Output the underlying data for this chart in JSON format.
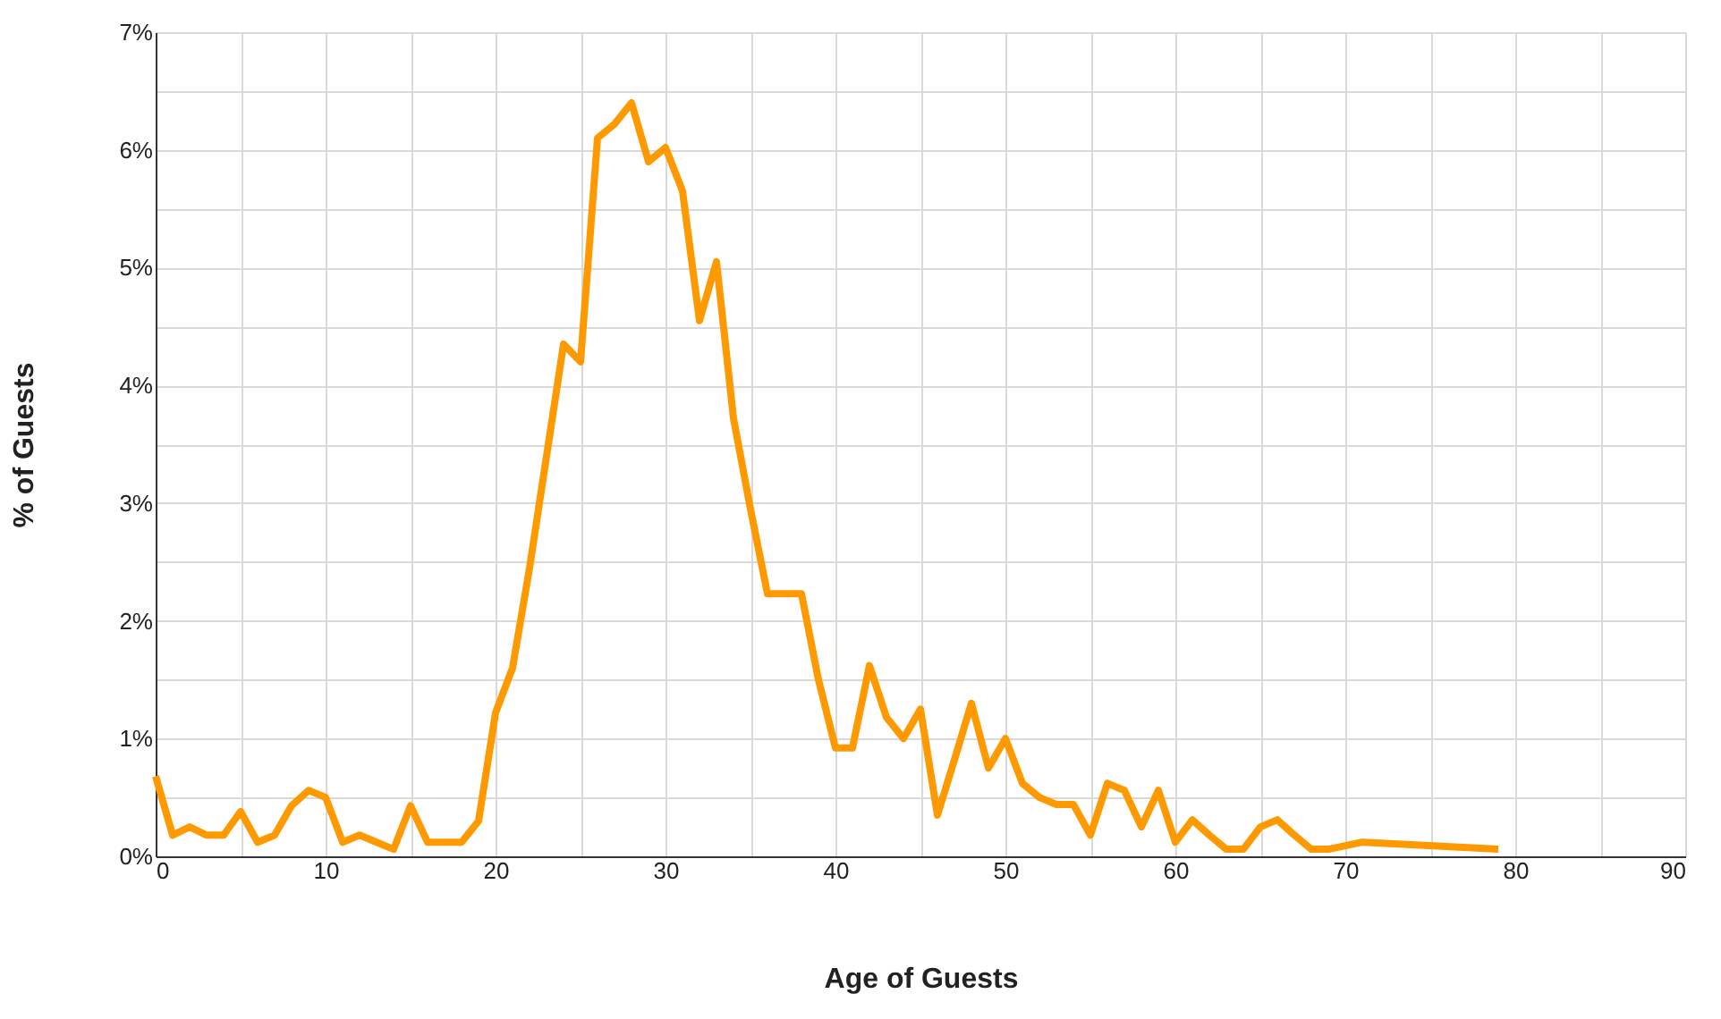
{
  "chart_data": {
    "type": "line",
    "xlabel": "Age of Guests",
    "ylabel": "% of Guests",
    "x": [
      0,
      1,
      2,
      3,
      4,
      5,
      6,
      7,
      8,
      9,
      10,
      11,
      12,
      13,
      14,
      15,
      16,
      17,
      18,
      19,
      20,
      21,
      22,
      23,
      24,
      25,
      26,
      27,
      28,
      29,
      30,
      31,
      32,
      33,
      34,
      35,
      36,
      37,
      38,
      39,
      40,
      41,
      42,
      43,
      44,
      45,
      46,
      47,
      48,
      49,
      50,
      51,
      52,
      53,
      54,
      55,
      56,
      57,
      58,
      59,
      60,
      61,
      62,
      63,
      64,
      65,
      66,
      67,
      68,
      69,
      70,
      71,
      79
    ],
    "series": [
      {
        "color": "#ff9900",
        "values": [
          0.68,
          0.18,
          0.25,
          0.18,
          0.18,
          0.38,
          0.12,
          0.18,
          0.43,
          0.56,
          0.5,
          0.12,
          0.18,
          0.12,
          0.06,
          0.43,
          0.12,
          0.12,
          0.12,
          0.3,
          1.22,
          1.6,
          2.45,
          3.4,
          4.35,
          4.2,
          6.1,
          6.22,
          6.4,
          5.9,
          6.02,
          5.65,
          4.55,
          5.05,
          3.72,
          2.95,
          2.23,
          2.23,
          2.23,
          1.5,
          0.92,
          0.92,
          1.62,
          1.18,
          1.0,
          1.25,
          0.35,
          0.82,
          1.3,
          0.75,
          1.0,
          0.62,
          0.5,
          0.44,
          0.44,
          0.18,
          0.62,
          0.56,
          0.25,
          0.56,
          0.12,
          0.31,
          0.18,
          0.06,
          0.06,
          0.25,
          0.31,
          0.18,
          0.06,
          0.06,
          0.09,
          0.12,
          0.06
        ]
      }
    ],
    "xlim": [
      0,
      90
    ],
    "xticks": [
      0,
      {
        "value": 5,
        "label": null
      },
      10,
      {
        "value": 15,
        "label": null
      },
      20,
      {
        "value": 25,
        "label": null
      },
      30,
      {
        "value": 35,
        "label": null
      },
      40,
      {
        "value": 45,
        "label": null
      },
      50,
      {
        "value": 55,
        "label": null
      },
      60,
      {
        "value": 65,
        "label": null
      },
      70,
      {
        "value": 75,
        "label": null
      },
      80,
      {
        "value": 85,
        "label": null
      },
      90
    ],
    "ylim": [
      0,
      7
    ],
    "yticks": [
      {
        "value": 0,
        "label": "0%"
      },
      {
        "value": 0.5,
        "label": null
      },
      {
        "value": 1,
        "label": "1%"
      },
      {
        "value": 1.5,
        "label": null
      },
      {
        "value": 2,
        "label": "2%"
      },
      {
        "value": 2.5,
        "label": null
      },
      {
        "value": 3,
        "label": "3%"
      },
      {
        "value": 3.5,
        "label": null
      },
      {
        "value": 4,
        "label": "4%"
      },
      {
        "value": 4.5,
        "label": null
      },
      {
        "value": 5,
        "label": "5%"
      },
      {
        "value": 5.5,
        "label": null
      },
      {
        "value": 6,
        "label": "6%"
      },
      {
        "value": 6.5,
        "label": null
      },
      {
        "value": 7,
        "label": "7%"
      }
    ],
    "grid": true,
    "marker": "none",
    "line_style": "solid"
  }
}
